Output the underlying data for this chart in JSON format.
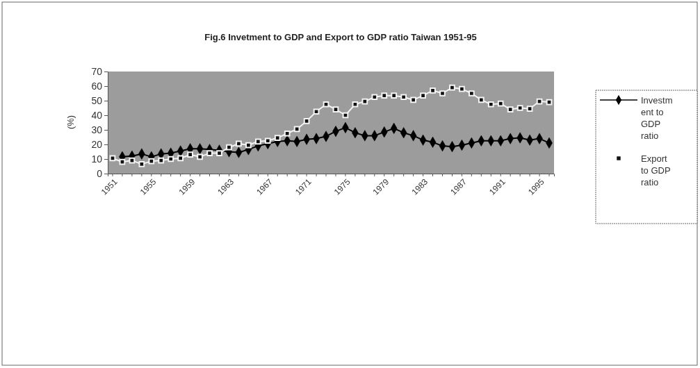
{
  "chart_data": {
    "type": "line",
    "title": "Fig.6 Invetment to GDP and Export to GDP ratio Taiwan 1951-95",
    "ylabel": "(%)",
    "categories": [
      "1951",
      null,
      null,
      null,
      "1955",
      null,
      null,
      null,
      "1959",
      null,
      null,
      null,
      "1963",
      null,
      null,
      null,
      "1967",
      null,
      null,
      null,
      "1971",
      null,
      null,
      null,
      "1975",
      null,
      null,
      null,
      "1979",
      null,
      null,
      null,
      "1983",
      null,
      null,
      null,
      "1987",
      null,
      null,
      null,
      "1991",
      null,
      null,
      null,
      "1995",
      null
    ],
    "series": [
      {
        "name": "Investment to GDP ratio",
        "color": "#000000",
        "marker": "diamond",
        "values": [
          null,
          11.5,
          12,
          13.5,
          11.5,
          13.5,
          14,
          15.5,
          17,
          17,
          16.5,
          16,
          15,
          14.5,
          16.5,
          19,
          20.5,
          22,
          22.5,
          22,
          23.5,
          24,
          25.5,
          29,
          31.5,
          28,
          26,
          26,
          28.5,
          31,
          28,
          26,
          23,
          21.5,
          19,
          18.5,
          19.5,
          21,
          22.5,
          22.5,
          22.5,
          24,
          24.5,
          23,
          24,
          21
        ]
      },
      {
        "name": "Export to GDP ratio",
        "color": "#111111",
        "marker": "square",
        "values": [
          10.5,
          8,
          9,
          6.5,
          8.5,
          9,
          10,
          10.5,
          13,
          11.5,
          14,
          14,
          18,
          20.5,
          19.5,
          22,
          22.5,
          24.5,
          27.5,
          30.5,
          36,
          42.5,
          47.5,
          44,
          40,
          47.5,
          49.5,
          52.5,
          53.5,
          53.5,
          52.5,
          50.5,
          53.5,
          57,
          55,
          59,
          58,
          55,
          50.5,
          47.5,
          48,
          44,
          45,
          44.5,
          49.5,
          49
        ]
      }
    ],
    "ylim": [
      0,
      70
    ],
    "yticks": [
      0,
      10,
      20,
      30,
      40,
      50,
      60,
      70
    ],
    "grid": false,
    "legend": "right"
  }
}
